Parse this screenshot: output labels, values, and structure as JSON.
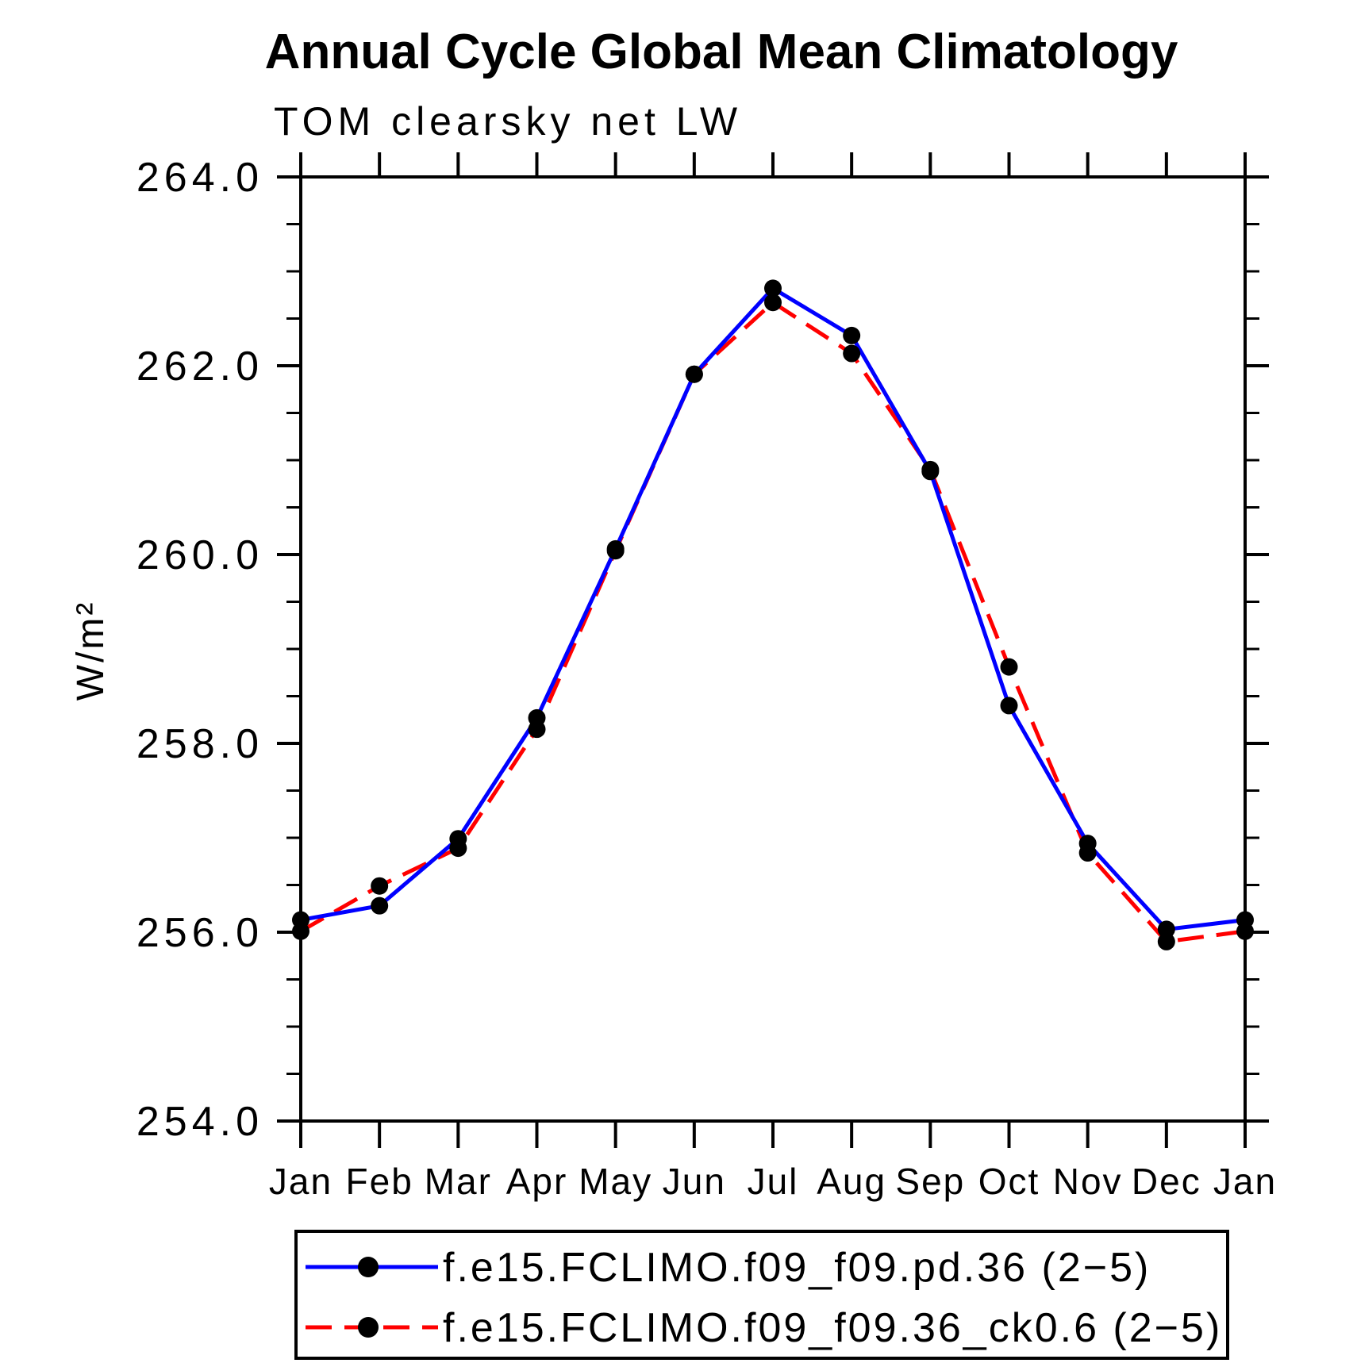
{
  "title": "Annual Cycle Global Mean Climatology",
  "subtitle": "TOM clearsky net LW",
  "chart_data": {
    "type": "line",
    "title": "Annual Cycle Global Mean Climatology",
    "subtitle": "TOM clearsky net LW",
    "xlabel": "",
    "ylabel": "W/m²",
    "categories": [
      "Jan",
      "Feb",
      "Mar",
      "Apr",
      "May",
      "Jun",
      "Jul",
      "Aug",
      "Sep",
      "Oct",
      "Nov",
      "Dec",
      "Jan"
    ],
    "ylim": [
      254.0,
      264.0
    ],
    "ytick_step": 2.0,
    "yminor_step": 0.5,
    "ytick_labels": [
      "254.0",
      "256.0",
      "258.0",
      "260.0",
      "262.0",
      "264.0"
    ],
    "grid": false,
    "legend_position": "bottom",
    "axis_color": "#000000",
    "series": [
      {
        "name": "f.e15.FCLIMO.f09_f09.pd.36 (2−5)",
        "color": "#0000ff",
        "style": "solid",
        "marker": "circle",
        "marker_color": "#000000",
        "values": [
          256.13,
          256.28,
          256.99,
          258.27,
          260.06,
          261.91,
          262.82,
          262.32,
          260.88,
          258.4,
          256.94,
          256.03,
          256.13
        ]
      },
      {
        "name": "f.e15.FCLIMO.f09_f09.36_ck0.6 (2−5)",
        "color": "#ff0000",
        "style": "dashed",
        "marker": "circle",
        "marker_color": "#000000",
        "values": [
          256.01,
          256.49,
          256.89,
          258.15,
          260.04,
          261.91,
          262.67,
          262.13,
          260.9,
          258.81,
          256.84,
          255.9,
          256.01
        ]
      }
    ]
  }
}
